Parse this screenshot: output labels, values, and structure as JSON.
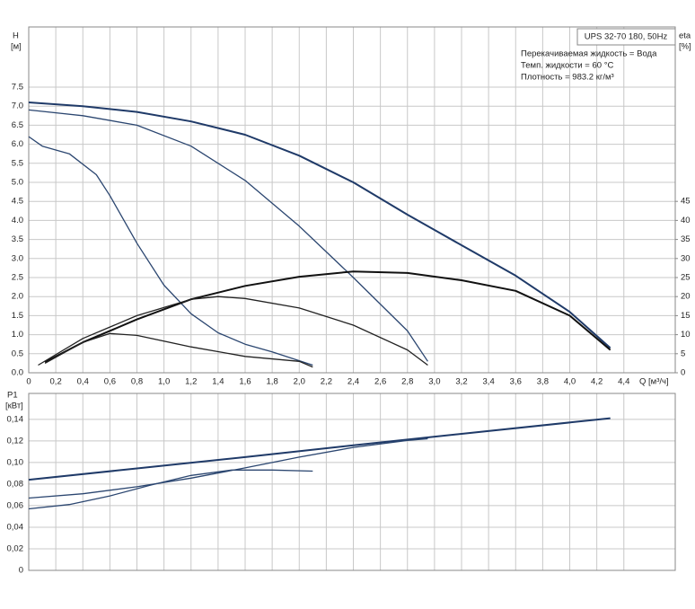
{
  "chart_data": [
    {
      "type": "line",
      "title": "UPS 32-70 180, 50Hz",
      "annotations": [
        "Перекачиваемая жидкость = Вода",
        "Темп. жидкости = 60 °C",
        "Плотность = 983.2 кг/м³"
      ],
      "ylabel": "H",
      "yunit": "[м]",
      "y2label": "eta",
      "y2unit": "[%]",
      "xlabel": "Q [м³/ч]",
      "xlim": [
        0,
        4.78
      ],
      "ylim": [
        0,
        9.08
      ],
      "y2lim": [
        0,
        90.8
      ],
      "grid": true,
      "xticks": [
        0,
        {
          "value": 0.2,
          "label": "0,2"
        },
        {
          "value": 0.4,
          "label": "0,4"
        },
        {
          "value": 0.6,
          "label": "0,6"
        },
        {
          "value": 0.8,
          "label": "0,8"
        },
        {
          "value": 1.0,
          "label": "1,0"
        },
        {
          "value": 1.2,
          "label": "1,2"
        },
        {
          "value": 1.4,
          "label": "1,4"
        },
        {
          "value": 1.6,
          "label": "1,6"
        },
        {
          "value": 1.8,
          "label": "1,8"
        },
        {
          "value": 2.0,
          "label": "2,0"
        },
        {
          "value": 2.2,
          "label": "2,2"
        },
        {
          "value": 2.4,
          "label": "2,4"
        },
        {
          "value": 2.6,
          "label": "2,6"
        },
        {
          "value": 2.8,
          "label": "2,8"
        },
        {
          "value": 3.0,
          "label": "3,0"
        },
        {
          "value": 3.2,
          "label": "3,2"
        },
        {
          "value": 3.4,
          "label": "3,4"
        },
        {
          "value": 3.6,
          "label": "3,6"
        },
        {
          "value": 3.8,
          "label": "3,8"
        },
        {
          "value": 4.0,
          "label": "4,0"
        },
        {
          "value": 4.2,
          "label": "4,2"
        },
        {
          "value": 4.4,
          "label": "4,4"
        }
      ],
      "yticks": [
        {
          "value": 0,
          "label": "0.0"
        },
        0.5,
        {
          "value": 1,
          "label": "1.0"
        },
        1.5,
        {
          "value": 2,
          "label": "2.0"
        },
        2.5,
        {
          "value": 3,
          "label": "3.0"
        },
        3.5,
        {
          "value": 4,
          "label": "4.0"
        },
        4.5,
        {
          "value": 5,
          "label": "5.0"
        },
        5.5,
        {
          "value": 6,
          "label": "6.0"
        },
        6.5,
        {
          "value": 7,
          "label": "7.0"
        },
        7.5
      ],
      "y2ticks": [
        0,
        5,
        10,
        15,
        20,
        25,
        30,
        35,
        40,
        45
      ],
      "series": [
        {
          "color": "#1f3a68",
          "axis": "y",
          "x": [
            0,
            0.4,
            0.8,
            1.2,
            1.6,
            2.0,
            2.4,
            2.8,
            3.0,
            3.2,
            3.6,
            4.0,
            4.3
          ],
          "values": [
            7.1,
            7.0,
            6.85,
            6.6,
            6.25,
            5.7,
            5.0,
            4.15,
            3.75,
            3.35,
            2.55,
            1.6,
            0.65
          ]
        },
        {
          "color": "#2b4670",
          "axis": "y",
          "x": [
            0,
            0.4,
            0.8,
            1.2,
            1.6,
            2.0,
            2.4,
            2.8,
            2.95
          ],
          "values": [
            6.9,
            6.75,
            6.5,
            5.95,
            5.05,
            3.85,
            2.5,
            1.1,
            0.3
          ]
        },
        {
          "color": "#2b4670",
          "axis": "y",
          "x": [
            0,
            0.1,
            0.3,
            0.5,
            0.6,
            0.8,
            1.0,
            1.2,
            1.4,
            1.6,
            1.8,
            2.1
          ],
          "values": [
            6.2,
            5.95,
            5.75,
            5.2,
            4.65,
            3.4,
            2.3,
            1.55,
            1.05,
            0.75,
            0.55,
            0.2
          ]
        },
        {
          "color": "#111111",
          "axis": "y2",
          "x": [
            0.12,
            0.4,
            0.8,
            1.2,
            1.6,
            2.0,
            2.4,
            2.8,
            3.2,
            3.6,
            4.0,
            4.3
          ],
          "values": [
            2.8,
            8,
            14,
            19.3,
            22.8,
            25.2,
            26.6,
            26.2,
            24.3,
            21.5,
            15,
            6
          ]
        },
        {
          "color": "#222222",
          "axis": "y2",
          "x": [
            0.07,
            0.4,
            0.8,
            1.2,
            1.4,
            1.6,
            2.0,
            2.4,
            2.8,
            2.95
          ],
          "values": [
            2,
            9,
            15,
            19.3,
            20,
            19.5,
            17,
            12.5,
            6,
            2
          ]
        },
        {
          "color": "#222222",
          "axis": "y2",
          "x": [
            0.12,
            0.4,
            0.6,
            0.8,
            1.2,
            1.6,
            2.0,
            2.1
          ],
          "values": [
            2.5,
            8,
            10.3,
            9.8,
            6.8,
            4.3,
            3,
            1.5
          ]
        }
      ]
    },
    {
      "type": "line",
      "ylabel": "P1",
      "yunit": "[кВт]",
      "xlim": [
        0,
        4.78
      ],
      "ylim": [
        0,
        0.164
      ],
      "grid": true,
      "yticks": [
        0,
        {
          "value": 0.02,
          "label": "0,02"
        },
        {
          "value": 0.04,
          "label": "0,04"
        },
        {
          "value": 0.06,
          "label": "0,06"
        },
        {
          "value": 0.08,
          "label": "0,08"
        },
        {
          "value": 0.1,
          "label": "0,10"
        },
        {
          "value": 0.12,
          "label": "0,12"
        },
        {
          "value": 0.14,
          "label": "0,14"
        }
      ],
      "series": [
        {
          "color": "#1f3a68",
          "x": [
            0,
            0.8,
            1.6,
            2.4,
            3.2,
            4.3
          ],
          "values": [
            0.084,
            0.0945,
            0.105,
            0.116,
            0.1265,
            0.141
          ]
        },
        {
          "color": "#2b4670",
          "x": [
            0,
            0.4,
            0.8,
            1.2,
            1.6,
            2.0,
            2.4,
            2.8,
            2.95
          ],
          "values": [
            0.067,
            0.071,
            0.0775,
            0.0855,
            0.095,
            0.105,
            0.114,
            0.1205,
            0.122
          ]
        },
        {
          "color": "#2b4670",
          "x": [
            0,
            0.3,
            0.6,
            0.9,
            1.2,
            1.5,
            1.8,
            2.1
          ],
          "values": [
            0.057,
            0.061,
            0.069,
            0.079,
            0.088,
            0.093,
            0.093,
            0.092
          ]
        }
      ]
    }
  ]
}
